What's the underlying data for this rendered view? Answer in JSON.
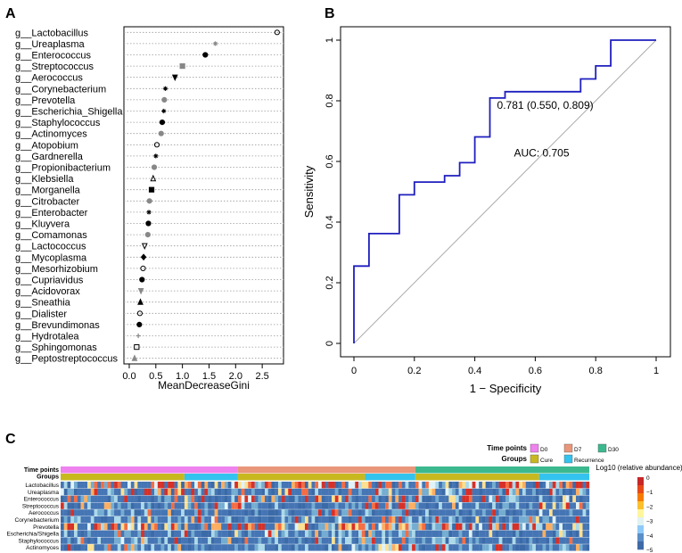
{
  "chart_data": [
    {
      "panel": "A",
      "type": "scatter",
      "subtype": "dotchart",
      "xlabel": "MeanDecreaseGini",
      "xticks": [
        "0.0",
        "0.5",
        "1.0",
        "1.5",
        "2.0",
        "2.5"
      ],
      "xlim": [
        -0.1,
        2.9
      ],
      "categories": [
        "g__Lactobacillus",
        "g__Ureaplasma",
        "g__Enterococcus",
        "g__Streptococcus",
        "g__Aerococcus",
        "g__Corynebacterium",
        "g__Prevotella",
        "g__Escherichia_Shigella",
        "g__Staphylococcus",
        "g__Actinomyces",
        "g__Atopobium",
        "g__Gardnerella",
        "g__Propionibacterium",
        "g__Klebsiella",
        "g__Morganella",
        "g__Citrobacter",
        "g__Enterobacter",
        "g__Kluyvera",
        "g__Comamonas",
        "g__Lactococcus",
        "g__Mycoplasma",
        "g__Mesorhizobium",
        "g__Cupriavidus",
        "g__Acidovorax",
        "g__Sneathia",
        "g__Dialister",
        "g__Brevundimonas",
        "g__Hydrotalea",
        "g__Sphingomonas",
        "g__Peptostreptococcus"
      ],
      "values": [
        2.78,
        1.62,
        1.43,
        1.0,
        0.86,
        0.68,
        0.66,
        0.65,
        0.62,
        0.6,
        0.52,
        0.5,
        0.47,
        0.45,
        0.42,
        0.38,
        0.37,
        0.36,
        0.35,
        0.29,
        0.27,
        0.26,
        0.24,
        0.22,
        0.21,
        0.2,
        0.19,
        0.17,
        0.14,
        0.1
      ],
      "markers": [
        "circle-open",
        "star",
        "circle",
        "square",
        "triangle-down",
        "star",
        "circle",
        "star",
        "circle",
        "circle",
        "circle-open",
        "star",
        "circle",
        "triangle-open",
        "square",
        "circle",
        "star",
        "circle",
        "circle",
        "triangle-down-open",
        "diamond",
        "circle-open",
        "circle",
        "triangle-down",
        "triangle",
        "circle-open",
        "circle",
        "plus",
        "square-open",
        "triangle"
      ],
      "colors": [
        "#000000",
        "#888888",
        "#000000",
        "#888888",
        "#000000",
        "#000000",
        "#888888",
        "#000000",
        "#000000",
        "#888888",
        "#000000",
        "#000000",
        "#888888",
        "#000000",
        "#000000",
        "#888888",
        "#000000",
        "#000000",
        "#888888",
        "#000000",
        "#000000",
        "#000000",
        "#000000",
        "#888888",
        "#000000",
        "#000000",
        "#000000",
        "#888888",
        "#000000",
        "#888888"
      ]
    },
    {
      "panel": "B",
      "type": "line",
      "subtype": "roc",
      "xlabel": "1 − Specificity",
      "ylabel": "Sensitivity",
      "xticks": [
        "0",
        "0.2",
        "0.4",
        "0.6",
        "0.8",
        "1"
      ],
      "yticks": [
        "0",
        "0.2",
        "0.4",
        "0.6",
        "0.8",
        "1"
      ],
      "xlim": [
        0,
        1
      ],
      "ylim": [
        0,
        1
      ],
      "series": [
        {
          "name": "ROC",
          "color": "#1f1fbf",
          "x": [
            0,
            0,
            0.05,
            0.05,
            0.15,
            0.15,
            0.2,
            0.2,
            0.3,
            0.3,
            0.35,
            0.35,
            0.4,
            0.4,
            0.45,
            0.45,
            0.5,
            0.5,
            0.75,
            0.75,
            0.8,
            0.8,
            0.85,
            0.85,
            1
          ],
          "y": [
            0,
            0.255,
            0.255,
            0.362,
            0.362,
            0.49,
            0.49,
            0.532,
            0.532,
            0.553,
            0.553,
            0.596,
            0.596,
            0.681,
            0.681,
            0.809,
            0.809,
            0.83,
            0.83,
            0.872,
            0.872,
            0.915,
            0.915,
            1,
            1
          ]
        },
        {
          "name": "reference",
          "color": "#aaaaaa",
          "x": [
            0,
            1
          ],
          "y": [
            0,
            1
          ]
        }
      ],
      "annotations": [
        {
          "text": "0.781 (0.550, 0.809)",
          "x": 0.45,
          "y": 0.809,
          "color": "#000000"
        },
        {
          "text": "AUC: 0.705",
          "x": 0.5,
          "y": 0.49,
          "color": "#1f1fbf"
        }
      ]
    },
    {
      "panel": "C",
      "type": "heatmap",
      "color_label": "Log10 (relative abundance)",
      "colorbar_ticks": [
        "0",
        "−1",
        "−2",
        "−3",
        "−4",
        "−5"
      ],
      "colorbar_range": [
        -5,
        0
      ],
      "row_labels": [
        "Lactobacillus",
        "Ureaplasma",
        "Enterococcus",
        "Streptococcus",
        "Aerococcus",
        "Corynebacterium",
        "Prevotella",
        "Escherichia/Shigella",
        "Staphylococcus",
        "Actinomyces"
      ],
      "annotation_tracks": [
        "Time points",
        "Groups"
      ],
      "legends": [
        {
          "title": "Time points",
          "items": [
            {
              "label": "D0",
              "color": "#ee82ee"
            },
            {
              "label": "D7",
              "color": "#e9967a"
            },
            {
              "label": "D30",
              "color": "#3cb88f"
            }
          ]
        },
        {
          "title": "Groups",
          "items": [
            {
              "label": "Cure",
              "color": "#c8b820"
            },
            {
              "label": "Recurrence",
              "color": "#33c3ee"
            }
          ]
        }
      ],
      "columns": 158,
      "segments": {
        "time_points": [
          {
            "label": "D0",
            "count": 53
          },
          {
            "label": "D7",
            "count": 53
          },
          {
            "label": "D30",
            "count": 52
          }
        ],
        "groups": [
          {
            "label": "Cure",
            "count": 37
          },
          {
            "label": "Recurrence",
            "count": 16
          },
          {
            "label": "Cure",
            "count": 38
          },
          {
            "label": "Recurrence",
            "count": 15
          },
          {
            "label": "Cure",
            "count": 37
          },
          {
            "label": "Recurrence",
            "count": 15
          }
        ]
      },
      "row_density_pct": [
        55,
        25,
        22,
        15,
        12,
        15,
        45,
        12,
        10,
        12
      ],
      "palette": [
        "#d73027",
        "#f46d43",
        "#fdae61",
        "#fee090",
        "#e0f3f8",
        "#abd9e9",
        "#74add1",
        "#4575b4",
        "#3b6aa8"
      ]
    }
  ],
  "panels": {
    "a": "A",
    "b": "B",
    "c": "C"
  }
}
